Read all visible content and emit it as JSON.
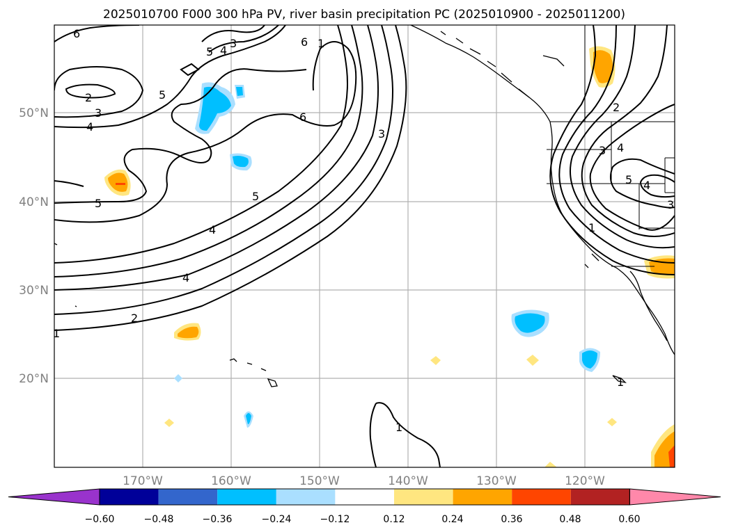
{
  "title": "2025010700 F000 300 hPa PV, river basin precipitation PC (2025010900 - 2025011200)",
  "lat_labels": [
    "50°N",
    "40°N",
    "30°N",
    "20°N"
  ],
  "lon_labels": [
    "170°W",
    "160°W",
    "150°W",
    "140°W",
    "130°W",
    "120°W"
  ],
  "colorbar": {
    "colors": [
      "#9933cc",
      "#000099",
      "#3366cc",
      "#00bfff",
      "#aadfff",
      "#ffffff",
      "#ffe680",
      "#ffa500",
      "#ff4500",
      "#b22222",
      "#ff88aa"
    ],
    "ticks": [
      "−0.60",
      "−0.48",
      "−0.36",
      "−0.24",
      "−0.12",
      "0.12",
      "0.24",
      "0.36",
      "0.48",
      "0.60"
    ]
  },
  "contour_labels": [
    "6",
    "3",
    "5",
    "4",
    "5",
    "6",
    "1",
    "2",
    "3",
    "4",
    "5",
    "6",
    "3",
    "4",
    "5",
    "4",
    "2",
    "1",
    "1",
    "2",
    "3",
    "4",
    "5",
    "4",
    "3",
    "1",
    "1"
  ]
}
